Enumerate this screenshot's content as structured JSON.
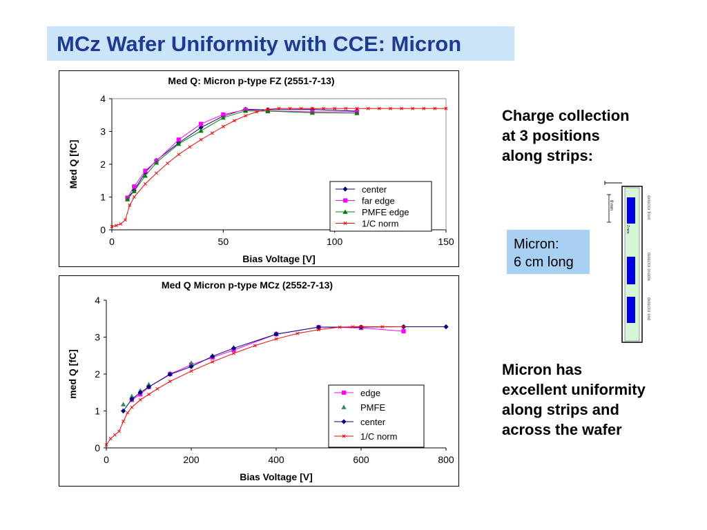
{
  "title": "MCz Wafer Uniformity with CCE: Micron",
  "text": {
    "collection": [
      "Charge collection",
      "at 3 positions",
      "along strips:"
    ],
    "micron_box": [
      "Micron:",
      "6 cm long"
    ],
    "uniformity": [
      "Micron has",
      "excellent uniformity",
      "along strips and",
      "across the wafer"
    ]
  },
  "diagram": {
    "scale_label": "8 mm",
    "gap_label": "2 mm",
    "labels": [
      "detector front",
      "detector middle",
      "detector end"
    ],
    "colors": {
      "strip": "#0000dd",
      "body": "#d6f5d6"
    }
  },
  "chart_data": [
    {
      "type": "line",
      "title": "Med Q: Micron p-type FZ (2551-7-13)",
      "xlabel": "Bias Voltage [V]",
      "ylabel": "Med Q [fC]",
      "xlim": [
        0,
        150
      ],
      "ylim": [
        0,
        4
      ],
      "xticks": [
        0,
        50,
        100,
        150
      ],
      "yticks": [
        0,
        1,
        2,
        3,
        4
      ],
      "grid": false,
      "legend": "bottom-right",
      "series": [
        {
          "name": "center",
          "color": "#000080",
          "marker": "diamond",
          "x": [
            7,
            10,
            15,
            20,
            30,
            40,
            50,
            60,
            70,
            90,
            110
          ],
          "y": [
            0.97,
            1.2,
            1.75,
            2.12,
            2.65,
            3.12,
            3.47,
            3.68,
            3.66,
            3.67,
            3.62
          ]
        },
        {
          "name": "far edge",
          "color": "#ff00ff",
          "marker": "square",
          "x": [
            7,
            10,
            15,
            20,
            30,
            40,
            50,
            60,
            70,
            90,
            110
          ],
          "y": [
            0.98,
            1.32,
            1.8,
            2.1,
            2.75,
            3.23,
            3.52,
            3.66,
            3.62,
            3.6,
            3.6
          ]
        },
        {
          "name": "PMFE edge",
          "color": "#008000",
          "marker": "triangle",
          "x": [
            7,
            10,
            15,
            20,
            30,
            40,
            50,
            60,
            70,
            90,
            110
          ],
          "y": [
            0.93,
            1.18,
            1.65,
            2.05,
            2.62,
            3.02,
            3.42,
            3.63,
            3.62,
            3.57,
            3.56
          ]
        },
        {
          "name": "1/C norm",
          "color": "#ff0000",
          "marker": "x",
          "x": [
            0,
            2,
            4,
            6,
            8,
            10,
            15,
            20,
            25,
            30,
            35,
            40,
            45,
            50,
            55,
            60,
            65,
            70,
            75,
            80,
            85,
            90,
            95,
            100,
            105,
            110,
            115,
            120,
            125,
            130,
            135,
            140,
            145,
            150
          ],
          "y": [
            0.1,
            0.13,
            0.18,
            0.3,
            0.75,
            1.0,
            1.4,
            1.73,
            2.03,
            2.3,
            2.53,
            2.75,
            2.95,
            3.15,
            3.33,
            3.48,
            3.6,
            3.68,
            3.7,
            3.7,
            3.7,
            3.7,
            3.7,
            3.7,
            3.7,
            3.7,
            3.7,
            3.7,
            3.7,
            3.7,
            3.7,
            3.7,
            3.7,
            3.7
          ]
        }
      ]
    },
    {
      "type": "line",
      "title": "Med Q Micron p-type MCz (2552-7-13)",
      "xlabel": "Bias Voltage [V]",
      "ylabel": "med Q [fC]",
      "xlim": [
        0,
        800
      ],
      "ylim": [
        0,
        4
      ],
      "xticks": [
        0,
        200,
        400,
        600,
        800
      ],
      "yticks": [
        0,
        1,
        2,
        3,
        4
      ],
      "grid": false,
      "legend": "bottom-right",
      "series": [
        {
          "name": "edge",
          "color": "#ff00ff",
          "marker": "square",
          "x": [
            60,
            80,
            100,
            150,
            200,
            250,
            300,
            400,
            500,
            600,
            700
          ],
          "y": [
            1.3,
            1.45,
            1.65,
            2.0,
            2.25,
            2.45,
            2.65,
            3.08,
            3.27,
            3.25,
            3.16
          ]
        },
        {
          "name": "PMFE",
          "color": "#2e8b57",
          "marker": "triangle",
          "line": false,
          "x": [
            40,
            60,
            80,
            100,
            150,
            200,
            250,
            300,
            400,
            500,
            600
          ],
          "y": [
            1.18,
            1.4,
            1.55,
            1.72,
            2.02,
            2.3,
            2.5,
            2.72,
            3.1,
            3.27,
            3.27
          ]
        },
        {
          "name": "center",
          "color": "#000080",
          "marker": "diamond",
          "x": [
            40,
            60,
            80,
            100,
            150,
            200,
            250,
            300,
            400,
            500,
            600,
            700,
            800
          ],
          "y": [
            1.0,
            1.32,
            1.5,
            1.65,
            1.99,
            2.2,
            2.48,
            2.7,
            3.08,
            3.27,
            3.27,
            3.28,
            3.28
          ]
        },
        {
          "name": "1/C norm",
          "color": "#ff0000",
          "marker": "x",
          "x": [
            0,
            10,
            20,
            30,
            40,
            50,
            60,
            80,
            100,
            120,
            150,
            200,
            250,
            300,
            350,
            400,
            450,
            500,
            550,
            580,
            600,
            650,
            700
          ],
          "y": [
            0.08,
            0.25,
            0.35,
            0.45,
            0.72,
            0.95,
            1.1,
            1.3,
            1.45,
            1.6,
            1.8,
            2.08,
            2.33,
            2.56,
            2.77,
            2.95,
            3.1,
            3.2,
            3.27,
            3.28,
            3.28,
            3.28,
            3.28
          ]
        }
      ]
    }
  ]
}
